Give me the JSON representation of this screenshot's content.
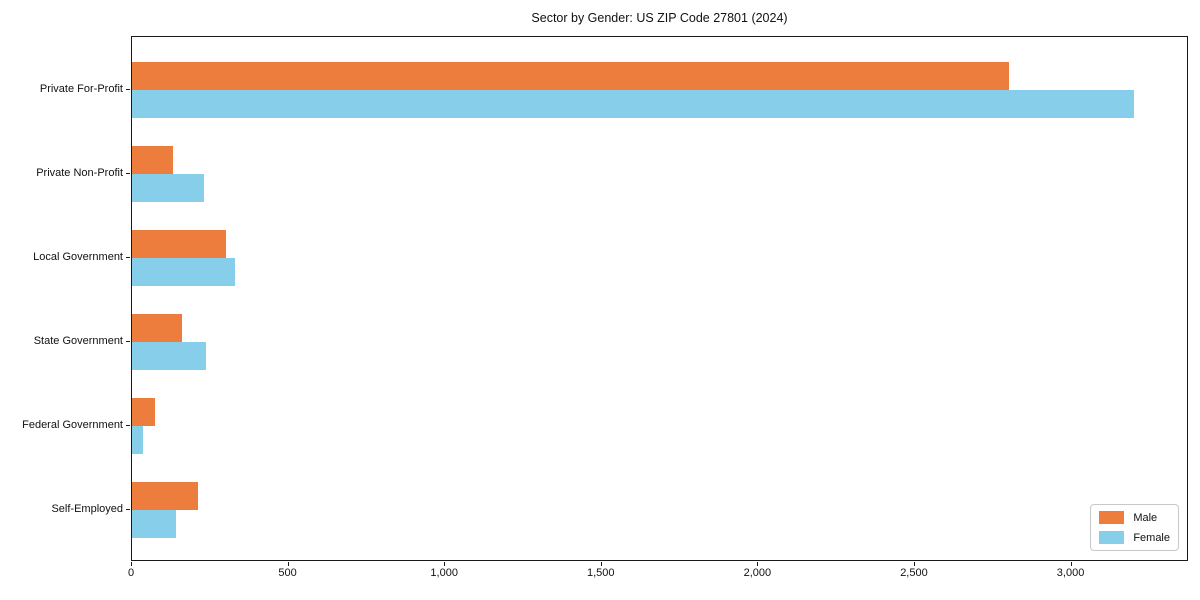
{
  "chart_title": "Sector by Gender: US ZIP Code 27801 (2024)",
  "chart_data": {
    "type": "bar",
    "orientation": "horizontal",
    "title": "Sector by Gender: US ZIP Code 27801 (2024)",
    "categories": [
      "Private For-Profit",
      "Private Non-Profit",
      "Local Government",
      "State Government",
      "Federal Government",
      "Self-Employed"
    ],
    "series": [
      {
        "name": "Male",
        "color": "#ED7D3C",
        "values": [
          2800,
          130,
          300,
          160,
          75,
          210
        ]
      },
      {
        "name": "Female",
        "color": "#87CEEB",
        "values": [
          3200,
          230,
          330,
          235,
          35,
          140
        ]
      }
    ],
    "xlabel": "",
    "ylabel": "",
    "xlim": [
      0,
      3375
    ],
    "xticks": [
      0,
      500,
      1000,
      1500,
      2000,
      2500,
      3000
    ],
    "xtick_labels": [
      "0",
      "500",
      "1,000",
      "1,500",
      "2,000",
      "2,500",
      "3,000"
    ],
    "grid": false,
    "legend": {
      "position": "lower right",
      "entries": [
        "Male",
        "Female"
      ]
    },
    "frame_color": "#1a1a1a",
    "background_color": "#ffffff"
  }
}
